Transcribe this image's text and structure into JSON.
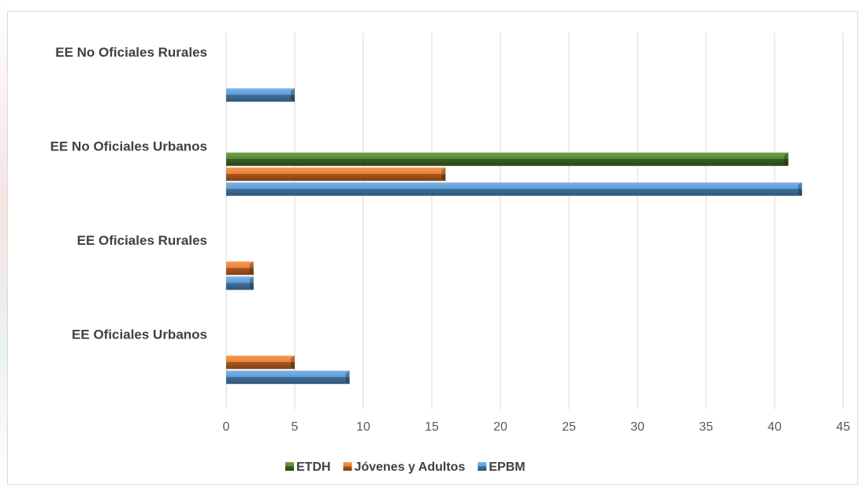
{
  "chart_data": {
    "type": "bar",
    "orientation": "horizontal",
    "title": "",
    "xlabel": "",
    "ylabel": "",
    "categories": [
      "EE Oficiales Urbanos",
      "EE Oficiales Rurales",
      "EE No Oficiales Urbanos",
      "EE No Oficiales Rurales"
    ],
    "series": [
      {
        "name": "EPBM",
        "color": "#5b9bd5",
        "values": [
          9,
          2,
          42,
          5
        ]
      },
      {
        "name": "Jóvenes y Adultos",
        "color": "#ed7d31",
        "values": [
          5,
          2,
          16,
          0
        ]
      },
      {
        "name": "ETDH",
        "color": "#548235",
        "values": [
          0,
          0,
          41,
          0
        ]
      }
    ],
    "xlim": [
      0,
      45
    ],
    "xticks": [
      "0",
      "5",
      "10",
      "15",
      "20",
      "25",
      "30",
      "35",
      "40",
      "45"
    ],
    "grid": "vertical",
    "legend_position": "bottom",
    "legend_order": [
      "ETDH",
      "Jóvenes y Adultos",
      "EPBM"
    ]
  }
}
